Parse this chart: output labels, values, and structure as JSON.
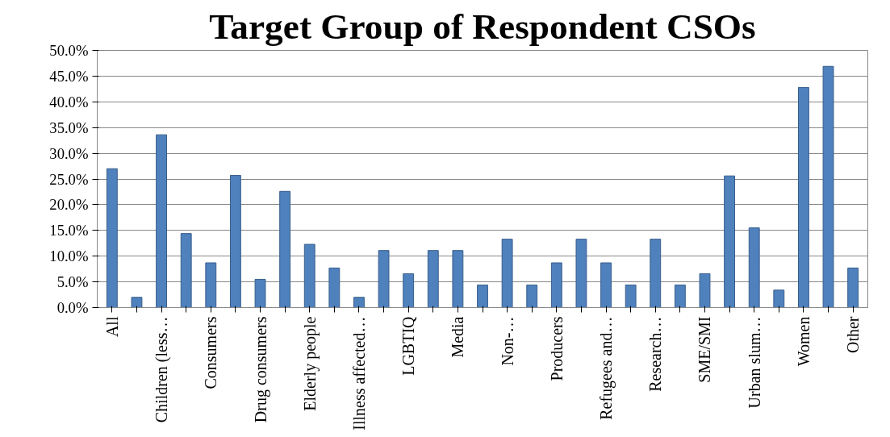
{
  "chart_data": {
    "type": "bar",
    "title": "Target Group of Respondent CSOs",
    "categories": [
      "All",
      null,
      "Children (less…",
      null,
      "Consumers",
      null,
      "Drug consumers",
      null,
      "Elderly people",
      null,
      "Illness affected…",
      null,
      "LGBTIQ",
      null,
      "Media",
      null,
      "Non-…",
      null,
      "Producers",
      null,
      "Refugees and…",
      null,
      "Research…",
      null,
      "SME/SMI",
      null,
      "Urban slum…",
      null,
      "Women",
      null,
      "Other"
    ],
    "values": [
      27,
      2,
      33.6,
      14.4,
      8.7,
      25.7,
      5.5,
      22.6,
      12.3,
      7.7,
      2,
      11.1,
      6.6,
      11.1,
      11.1,
      4.4,
      13.3,
      4.4,
      8.7,
      13.3,
      8.7,
      4.4,
      13.3,
      4.4,
      6.6,
      25.6,
      15.5,
      3.4,
      42.8,
      46.9,
      7.7
    ],
    "color": "#4f81bd",
    "ylim": [
      0,
      50
    ],
    "yticks": [
      {
        "value": 0,
        "label": "0.0%"
      },
      {
        "value": 5,
        "label": "5.0%"
      },
      {
        "value": 10,
        "label": "10.0%"
      },
      {
        "value": 15,
        "label": "15.0%"
      },
      {
        "value": 20,
        "label": "20.0%"
      },
      {
        "value": 25,
        "label": "25.0%"
      },
      {
        "value": 30,
        "label": "30.0%"
      },
      {
        "value": 35,
        "label": "35.0%"
      },
      {
        "value": 40,
        "label": "40.0%"
      },
      {
        "value": 45,
        "label": "45.0%"
      },
      {
        "value": 50,
        "label": "50.0%"
      }
    ],
    "grid": "y"
  }
}
